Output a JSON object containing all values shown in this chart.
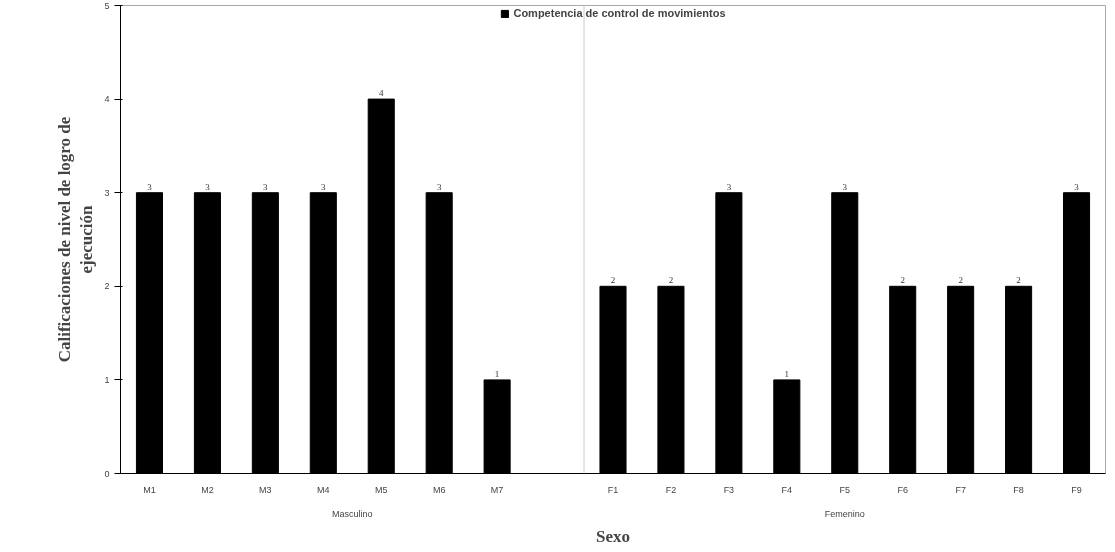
{
  "chart_data": {
    "type": "bar",
    "xlabel": "Sexo",
    "ylabel": "Calificaciones de nivel de logro de ejecución",
    "categories": [
      "M1",
      "M2",
      "M3",
      "M4",
      "M5",
      "M6",
      "M7",
      null,
      "F1",
      "F2",
      "F3",
      "F4",
      "F5",
      "F6",
      "F7",
      "F8",
      "F9"
    ],
    "series": [
      {
        "name": "Competencia de control de movimientos",
        "color": "#000000",
        "values": [
          3,
          3,
          3,
          3,
          4,
          3,
          1,
          null,
          2,
          2,
          3,
          1,
          3,
          2,
          2,
          2,
          3
        ]
      }
    ],
    "annotations": [
      "Masculino",
      "Femenino"
    ],
    "ylim": [
      0,
      5
    ],
    "yticks": [
      0,
      1,
      2,
      3,
      4,
      5
    ],
    "data_labels": true,
    "legend": "top",
    "grid": false
  }
}
